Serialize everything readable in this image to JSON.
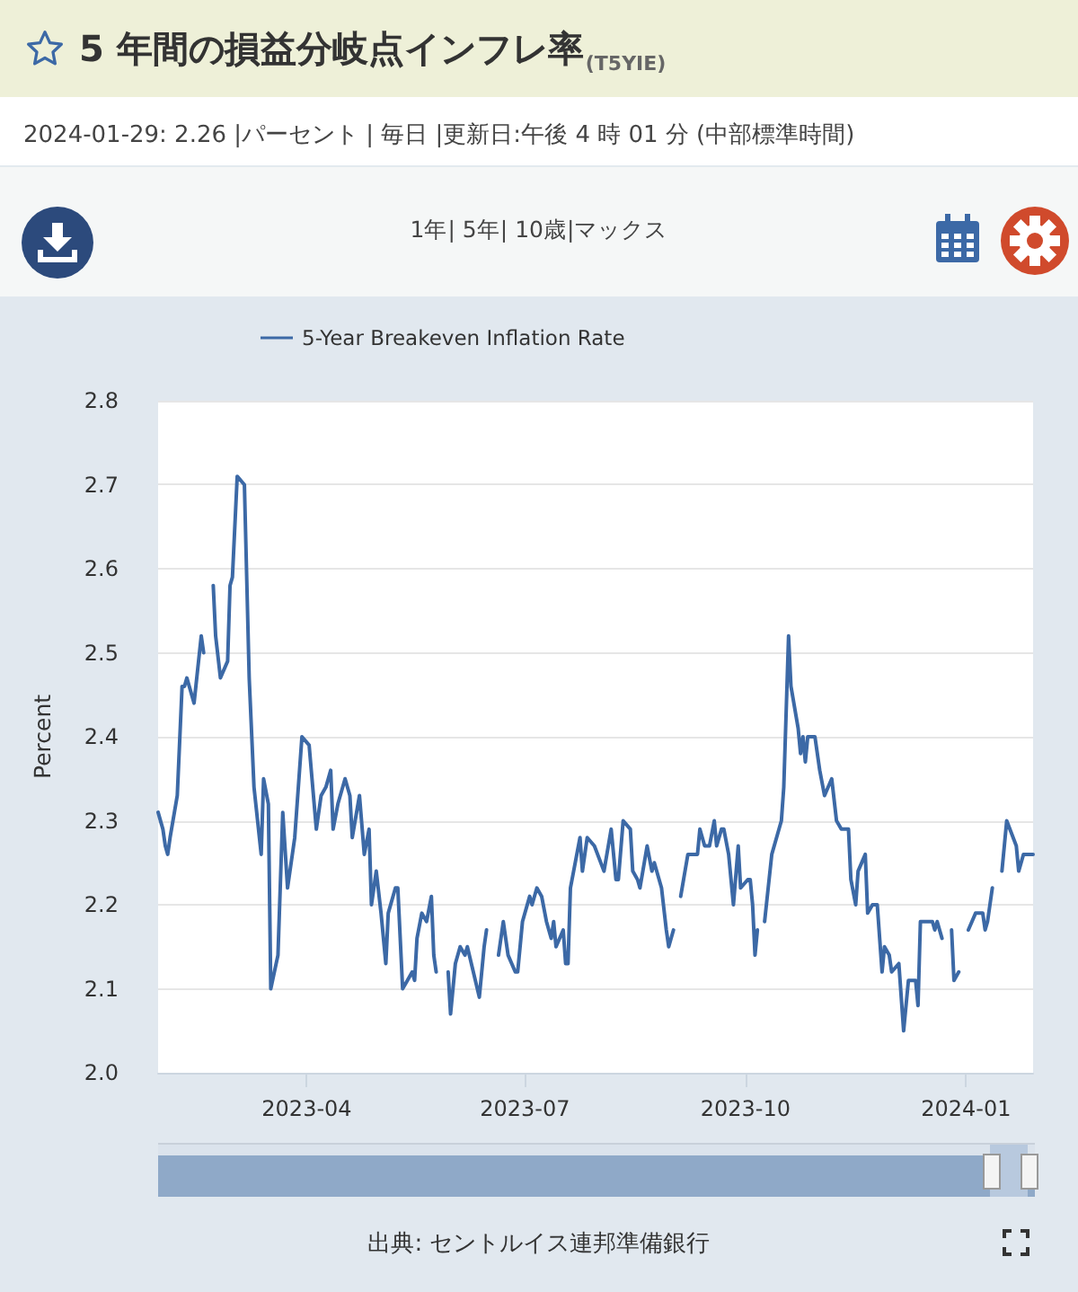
{
  "chart_data": {
    "type": "line",
    "title": "5 年間の損益分岐点インフレ率",
    "subtitle": "2024-01-29: 2.26 |パーセント | 毎日 |更新日:午後 4 時 01 分 (中部標準時間)",
    "annotations": [
      "(T5YIE)",
      "1年| 5年| 10歳|マックス",
      "出典: セントルイス連邦準備銀行"
    ],
    "ylabel": "Percent",
    "xlim": [
      "2023-01-29",
      "2024-01-29"
    ],
    "xticks": [
      "2023-04",
      "2023-07",
      "2023-10",
      "2024-01"
    ],
    "ylim": [
      2.0,
      2.8
    ],
    "yticks": [
      {
        "value": 2.0,
        "label": "2.0"
      },
      2.1,
      2.2,
      2.3,
      2.4,
      2.5,
      2.6,
      2.7,
      2.8
    ],
    "grid": "y",
    "legend": "top left",
    "marker": "none",
    "line_style": "solid",
    "series": [
      {
        "name": "5-Year Breakeven Inflation Rate",
        "color": "#3c69a6",
        "x": [
          "2023-01-29",
          "2023-01-31",
          "2023-02-01",
          "2023-02-02",
          "2023-02-03",
          "2023-02-06",
          "2023-02-08",
          "2023-02-09",
          "2023-02-10",
          "2023-02-13",
          "2023-02-16",
          "2023-02-17",
          "2023-02-19",
          "2023-02-21",
          "2023-02-22",
          "2023-02-24",
          "2023-02-27",
          "2023-02-28",
          "2023-03-01",
          "2023-03-03",
          "2023-03-06",
          "2023-03-08",
          "2023-03-10",
          "2023-03-13",
          "2023-03-14",
          "2023-03-16",
          "2023-03-17",
          "2023-03-20",
          "2023-03-22",
          "2023-03-24",
          "2023-03-27",
          "2023-03-30",
          "2023-04-02",
          "2023-04-05",
          "2023-04-07",
          "2023-04-09",
          "2023-04-11",
          "2023-04-12",
          "2023-04-14",
          "2023-04-17",
          "2023-04-19",
          "2023-04-20",
          "2023-04-23",
          "2023-04-25",
          "2023-04-27",
          "2023-04-28",
          "2023-04-30",
          "2023-05-02",
          "2023-05-04",
          "2023-05-05",
          "2023-05-08",
          "2023-05-09",
          "2023-05-11",
          "2023-05-13",
          "2023-05-15",
          "2023-05-16",
          "2023-05-17",
          "2023-05-19",
          "2023-05-21",
          "2023-05-23",
          "2023-05-24",
          "2023-05-25",
          "2023-05-27",
          "2023-05-30",
          "2023-05-31",
          "2023-06-02",
          "2023-06-04",
          "2023-06-06",
          "2023-06-07",
          "2023-06-12",
          "2023-06-14",
          "2023-06-15",
          "2023-06-17",
          "2023-06-20",
          "2023-06-22",
          "2023-06-24",
          "2023-06-27",
          "2023-06-28",
          "2023-06-30",
          "2023-07-03",
          "2023-07-04",
          "2023-07-06",
          "2023-07-08",
          "2023-07-10",
          "2023-07-12",
          "2023-07-13",
          "2023-07-14",
          "2023-07-17",
          "2023-07-18",
          "2023-07-19",
          "2023-07-20",
          "2023-07-24",
          "2023-07-25",
          "2023-07-27",
          "2023-07-30",
          "2023-08-03",
          "2023-08-06",
          "2023-08-08",
          "2023-08-09",
          "2023-08-11",
          "2023-08-14",
          "2023-08-15",
          "2023-08-17",
          "2023-08-18",
          "2023-08-21",
          "2023-08-23",
          "2023-08-24",
          "2023-08-27",
          "2023-08-29",
          "2023-08-30",
          "2023-09-01",
          "2023-09-02",
          "2023-09-04",
          "2023-09-07",
          "2023-09-11",
          "2023-09-12",
          "2023-09-14",
          "2023-09-16",
          "2023-09-18",
          "2023-09-19",
          "2023-09-21",
          "2023-09-22",
          "2023-09-24",
          "2023-09-26",
          "2023-09-28",
          "2023-09-29",
          "2023-10-02",
          "2023-10-03",
          "2023-10-04",
          "2023-10-05",
          "2023-10-06",
          "2023-10-07",
          "2023-10-09",
          "2023-10-12",
          "2023-10-16",
          "2023-10-17",
          "2023-10-19",
          "2023-10-20",
          "2023-10-23",
          "2023-10-24",
          "2023-10-25",
          "2023-10-26",
          "2023-10-27",
          "2023-10-30",
          "2023-11-01",
          "2023-11-03",
          "2023-11-06",
          "2023-11-08",
          "2023-11-10",
          "2023-11-13",
          "2023-11-14",
          "2023-11-16",
          "2023-11-17",
          "2023-11-20",
          "2023-11-21",
          "2023-11-23",
          "2023-11-25",
          "2023-11-27",
          "2023-11-28",
          "2023-11-30",
          "2023-12-01",
          "2023-12-04",
          "2023-12-06",
          "2023-12-08",
          "2023-12-11",
          "2023-12-12",
          "2023-12-13",
          "2023-12-15",
          "2023-12-18",
          "2023-12-19",
          "2023-12-20",
          "2023-12-22",
          "2023-12-24",
          "2023-12-26",
          "2023-12-27",
          "2023-12-29",
          "2023-12-31",
          "2024-01-02",
          "2024-01-05",
          "2024-01-08",
          "2024-01-09",
          "2024-01-10",
          "2024-01-12",
          "2024-01-14",
          "2024-01-16",
          "2024-01-18",
          "2024-01-22",
          "2024-01-23",
          "2024-01-25",
          "2024-01-29"
        ],
        "values": [
          2.31,
          2.29,
          2.27,
          2.26,
          2.28,
          2.33,
          2.46,
          2.46,
          2.47,
          2.44,
          2.52,
          2.5,
          null,
          2.58,
          2.52,
          2.47,
          2.49,
          2.58,
          2.59,
          2.71,
          2.7,
          2.47,
          2.34,
          2.26,
          2.35,
          2.32,
          2.1,
          2.14,
          2.31,
          2.22,
          2.28,
          2.4,
          2.39,
          2.29,
          2.33,
          2.34,
          2.36,
          2.29,
          2.32,
          2.35,
          2.33,
          2.28,
          2.33,
          2.26,
          2.29,
          2.2,
          2.24,
          2.19,
          2.13,
          2.19,
          2.22,
          2.22,
          2.1,
          2.11,
          2.12,
          2.11,
          2.16,
          2.19,
          2.18,
          2.21,
          2.14,
          2.12,
          null,
          2.12,
          2.07,
          2.13,
          2.15,
          2.14,
          2.15,
          2.09,
          2.15,
          2.17,
          null,
          2.14,
          2.18,
          2.14,
          2.12,
          2.12,
          2.18,
          2.21,
          2.2,
          2.22,
          2.21,
          2.18,
          2.16,
          2.18,
          2.15,
          2.17,
          2.13,
          2.13,
          2.22,
          2.28,
          2.24,
          2.28,
          2.27,
          2.24,
          2.29,
          2.23,
          2.23,
          2.3,
          2.29,
          2.24,
          2.23,
          2.22,
          2.27,
          2.24,
          2.25,
          2.22,
          2.17,
          2.15,
          2.17,
          null,
          2.21,
          2.26,
          2.26,
          2.29,
          2.27,
          2.27,
          2.3,
          2.27,
          2.29,
          2.29,
          2.26,
          2.2,
          2.27,
          2.22,
          2.23,
          2.23,
          2.2,
          2.14,
          2.17,
          null,
          2.18,
          2.26,
          2.3,
          2.34,
          2.52,
          2.46,
          2.41,
          2.38,
          2.4,
          2.37,
          2.4,
          2.4,
          2.36,
          2.33,
          2.35,
          2.3,
          2.29,
          2.29,
          2.23,
          2.2,
          2.24,
          2.26,
          2.19,
          2.2,
          2.2,
          2.12,
          2.15,
          2.14,
          2.12,
          2.13,
          2.05,
          2.11,
          2.11,
          2.08,
          2.18,
          2.18,
          2.18,
          2.17,
          2.18,
          2.16,
          null,
          2.17,
          2.11,
          2.12,
          null,
          2.17,
          2.19,
          2.19,
          2.17,
          2.18,
          2.22,
          null,
          2.24,
          2.3,
          2.27,
          2.24,
          2.26,
          2.26
        ]
      }
    ]
  }
}
